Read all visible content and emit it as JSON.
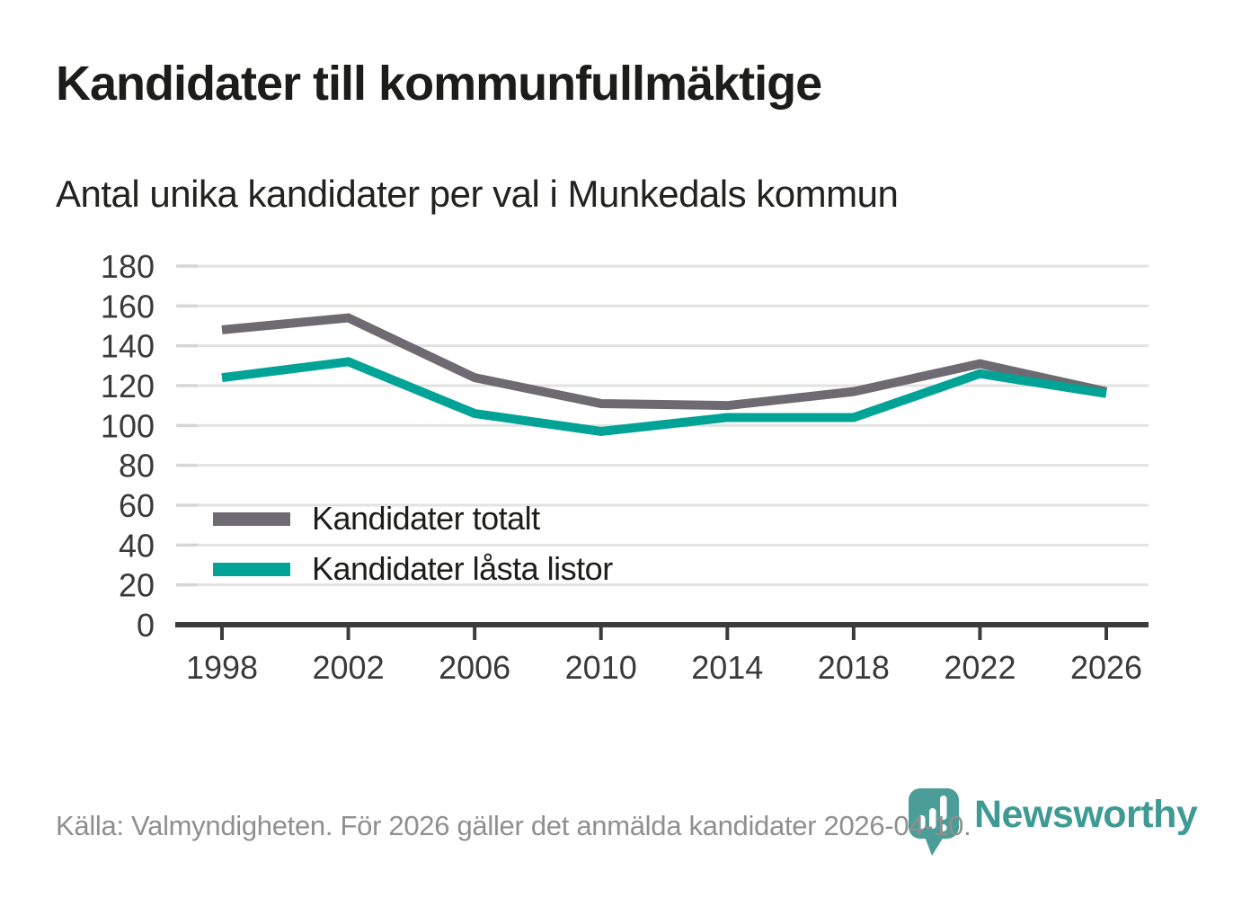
{
  "page": {
    "title": "Kandidater till kommunfullmäktige",
    "subtitle": "Antal unika kandidater per val i Munkedals kommun",
    "source_note": "Källa: Valmyndigheten. För 2026 gäller det anmälda kandidater 2026-04-10.",
    "brand": {
      "name": "Newsworthy",
      "icon": "map-pin-bar-chart-icon",
      "wordmark_color": "#3e9a93",
      "icon_color": "#4a9e97"
    }
  },
  "colors": {
    "background": "#ffffff",
    "gridline": "#e2e2e2",
    "tick_stub": "#d6d6d6",
    "axis": "#3b3b3b",
    "axis_label": "#3a3a3a",
    "footer_text": "#8f8f8f"
  },
  "chart_data": {
    "type": "line",
    "title": "Kandidater till kommunfullmäktige",
    "subtitle": "Antal unika kandidater per val i Munkedals kommun",
    "categories": [
      "1998",
      "2002",
      "2006",
      "2010",
      "2014",
      "2018",
      "2022",
      "2026"
    ],
    "series": [
      {
        "name": "Kandidater totalt",
        "color": "#6e6a71",
        "values": [
          148,
          154,
          124,
          111,
          110,
          117,
          131,
          117
        ]
      },
      {
        "name": "Kandidater låsta listor",
        "color": "#00a396",
        "values": [
          124,
          132,
          106,
          97,
          104,
          104,
          126,
          116
        ]
      }
    ],
    "xlabel": "",
    "ylabel": "",
    "ylim": [
      0,
      180
    ],
    "yticks": [
      0,
      20,
      40,
      60,
      80,
      100,
      120,
      140,
      160,
      180
    ],
    "grid": "horizontal",
    "legend_position": "inside-bottom-left",
    "line_width": 10
  }
}
